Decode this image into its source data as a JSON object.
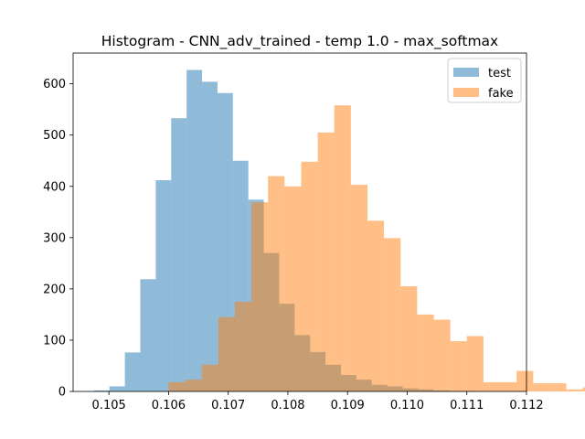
{
  "chart_data": {
    "type": "bar",
    "title": "Histogram - CNN_adv_trained - temp 1.0 - max_softmax",
    "xlabel": "",
    "ylabel": "",
    "xlim": [
      0.1044,
      0.112
    ],
    "ylim": [
      0,
      660
    ],
    "xticks": [
      0.105,
      0.106,
      0.107,
      0.108,
      0.109,
      0.11,
      0.111,
      0.112
    ],
    "xtick_labels": [
      "0.105",
      "0.106",
      "0.107",
      "0.108",
      "0.109",
      "0.110",
      "0.111",
      "0.112"
    ],
    "yticks": [
      0,
      100,
      200,
      300,
      400,
      500,
      600
    ],
    "ytick_labels": [
      "0",
      "100",
      "200",
      "300",
      "400",
      "500",
      "600"
    ],
    "legend_position": "top-right",
    "series": [
      {
        "name": "test",
        "color": "#1f77b4",
        "alpha": 0.5,
        "bin_start": 0.10475,
        "bin_width": 0.0002587,
        "values": [
          2,
          10,
          76,
          219,
          412,
          533,
          627,
          604,
          582,
          450,
          374,
          270,
          171,
          110,
          77,
          52,
          32,
          23,
          13,
          10,
          6,
          4,
          2,
          1,
          1
        ]
      },
      {
        "name": "fake",
        "color": "#ff7f0e",
        "alpha": 0.5,
        "bin_start": 0.106,
        "bin_width": 0.0002778,
        "values": [
          18,
          23,
          52,
          145,
          175,
          369,
          420,
          400,
          448,
          505,
          558,
          403,
          333,
          299,
          205,
          150,
          140,
          98,
          108,
          18,
          18,
          40,
          16,
          16,
          4,
          8
        ]
      }
    ]
  }
}
